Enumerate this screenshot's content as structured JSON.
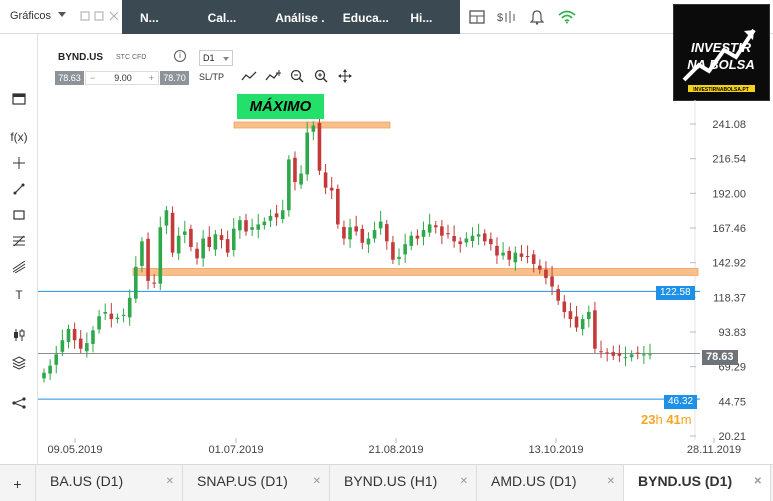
{
  "topbar": {
    "charts_label": "Gráficos",
    "nav_tabs": [
      "N...",
      "Cal...",
      "Análise ...",
      "Educa...",
      "Hi..."
    ]
  },
  "logo": {
    "line1": "INVESTIR",
    "line2": "NA BOLSA",
    "url": "INVESTIRNABOLSA.PT"
  },
  "symbol": {
    "name": "BYND.US",
    "type": "STC CFD",
    "timeframe": "D1",
    "sell_price": "78.63",
    "quantity": "9.00",
    "buy_price": "78.70",
    "sltp_label": "SL/TP"
  },
  "annotations": {
    "max_label": "MÁXIMO"
  },
  "price_axis": {
    "ticks": [
      "241.08",
      "216.54",
      "192.00",
      "167.46",
      "142.92",
      "118.37",
      "93.83",
      "69.29",
      "44.75",
      "20.21"
    ],
    "levels": [
      {
        "label": "122.58",
        "color": "#1e90e6"
      },
      {
        "label": "78.63",
        "color": "#6d7378"
      },
      {
        "label": "46.32",
        "color": "#1e90e6"
      }
    ]
  },
  "date_axis": {
    "ticks": [
      "09.05.2019",
      "01.07.2019",
      "21.08.2019",
      "13.10.2019",
      "28.11.2019"
    ]
  },
  "countdown": {
    "hours": "23",
    "h_unit": "h",
    "minutes": "41",
    "m_unit": "m"
  },
  "bottom_tabs": [
    {
      "label": "BA.US (D1)"
    },
    {
      "label": "SNAP.US (D1)"
    },
    {
      "label": "BYND.US (H1)"
    },
    {
      "label": "AMD.US (D1)"
    },
    {
      "label": "BYND.US (D1)",
      "active": true
    }
  ],
  "colors": {
    "up": "#2ea84a",
    "down": "#c43a3a",
    "level_line": "#1e90e6",
    "zone": "#f7c08a",
    "max_badge": "#22e06a"
  },
  "chart_data": {
    "type": "candlestick",
    "series_close_approx": [
      65,
      70,
      78,
      88,
      96,
      88,
      82,
      86,
      95,
      105,
      108,
      103,
      104,
      106,
      118,
      140,
      158,
      130,
      128,
      168,
      180,
      150,
      162,
      165,
      154,
      146,
      160,
      154,
      163,
      159,
      150,
      167,
      173,
      165,
      168,
      170,
      172,
      176,
      175,
      180,
      216,
      200,
      206,
      235,
      240,
      208,
      196,
      194,
      170,
      160,
      168,
      165,
      157,
      160,
      166,
      172,
      158,
      145,
      147,
      156,
      162,
      160,
      166,
      170,
      168,
      162,
      163,
      158,
      156,
      160,
      162,
      163,
      158,
      156,
      148,
      150,
      145,
      150,
      147,
      147,
      142,
      138,
      132,
      126,
      116,
      108,
      103,
      97,
      103,
      108,
      82,
      80,
      79,
      77,
      77,
      76,
      78,
      79,
      78,
      78
    ],
    "ylim": [
      20.21,
      241.08
    ],
    "x_ticks": [
      "09.05.2019",
      "01.07.2019",
      "21.08.2019",
      "13.10.2019",
      "28.11.2019"
    ]
  }
}
